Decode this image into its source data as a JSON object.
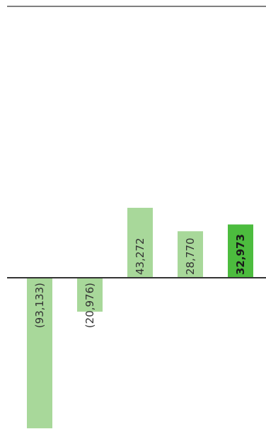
{
  "chart_data": {
    "type": "bar",
    "series": [
      {
        "values": [
          -93133,
          -20976,
          43272,
          28770,
          32973
        ],
        "labels": [
          "(93,133)",
          "(20,976)",
          "43,272",
          "28,770",
          "32,973"
        ],
        "colors": [
          "#a8d89a",
          "#a8d89a",
          "#a8d89a",
          "#a8d89a",
          "#4cbc3e"
        ],
        "bold": [
          false,
          false,
          false,
          false,
          true
        ]
      }
    ],
    "title": "",
    "xlabel": "",
    "ylabel": "",
    "ylim": [
      -95000,
      170000
    ],
    "grid": false,
    "legend": "none"
  }
}
